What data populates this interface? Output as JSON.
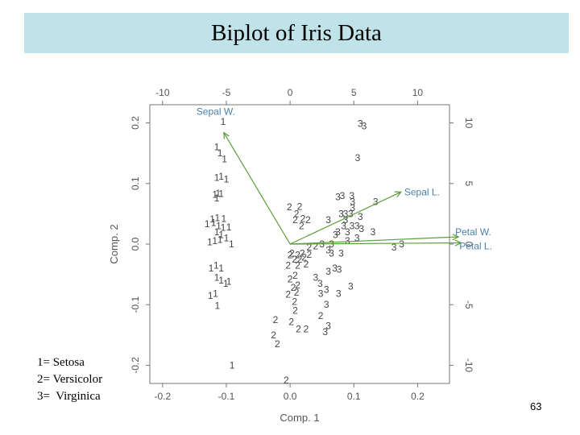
{
  "slide": {
    "title": "Biplot of Iris Data",
    "page_number": "63",
    "legend": [
      "1= Setosa",
      "2= Versicolor",
      "3=  Virginica"
    ]
  },
  "chart_data": {
    "type": "scatter",
    "subtype": "biplot",
    "xlabel": "Comp. 1",
    "ylabel": "Comp. 2",
    "xlim": [
      -0.22,
      0.25
    ],
    "ylim": [
      -0.23,
      0.23
    ],
    "x_ticks": [
      "-0.2",
      "-0.1",
      "0.0",
      "0.1",
      "0.2"
    ],
    "x_tick_values": [
      -0.2,
      -0.1,
      0.0,
      0.1,
      0.2
    ],
    "y_ticks": [
      "-0.2",
      "-0.1",
      "0.0",
      "0.1",
      "0.2"
    ],
    "y_tick_values": [
      -0.2,
      -0.1,
      0.0,
      0.1,
      0.2
    ],
    "top_ticks": [
      "-10",
      "-5",
      "0",
      "5",
      "10"
    ],
    "top_tick_values": [
      -10,
      -5,
      0,
      5,
      10
    ],
    "top_lim": [
      -11,
      12.5
    ],
    "right_ticks": [
      "10",
      "5",
      "0",
      "-5",
      "-10"
    ],
    "right_tick_values": [
      10,
      5,
      0,
      -5,
      -10
    ],
    "right_lim": [
      -11.5,
      11.5
    ],
    "colors": {
      "axis": "#777777",
      "points": "#444444",
      "arrows": "#5c9e3c",
      "labels": "#4a7fa8"
    },
    "loadings": [
      {
        "name": "Sepal W.",
        "x": -5.2,
        "y": 9.2
      },
      {
        "name": "Sepal L.",
        "x": 8.7,
        "y": 4.3
      },
      {
        "name": "Petal W.",
        "x": 13.2,
        "y": 0.6
      },
      {
        "name": "Petal L.",
        "x": 13.4,
        "y": 0.1
      }
    ],
    "series": [
      {
        "name": "Setosa",
        "label": "1",
        "points": [
          [
            -0.105,
            0.202
          ],
          [
            -0.115,
            0.16
          ],
          [
            -0.103,
            0.14
          ],
          [
            -0.11,
            0.15
          ],
          [
            -0.115,
            0.11
          ],
          [
            -0.108,
            0.112
          ],
          [
            -0.1,
            0.107
          ],
          [
            -0.118,
            0.082
          ],
          [
            -0.113,
            0.084
          ],
          [
            -0.108,
            0.083
          ],
          [
            -0.115,
            0.076
          ],
          [
            -0.122,
            0.041
          ],
          [
            -0.114,
            0.043
          ],
          [
            -0.104,
            0.042
          ],
          [
            -0.13,
            0.033
          ],
          [
            -0.12,
            0.035
          ],
          [
            -0.112,
            0.03
          ],
          [
            -0.105,
            0.027
          ],
          [
            -0.096,
            0.028
          ],
          [
            -0.115,
            0.02
          ],
          [
            -0.108,
            0.015
          ],
          [
            -0.1,
            0.01
          ],
          [
            -0.126,
            0.003
          ],
          [
            -0.118,
            0.005
          ],
          [
            -0.11,
            0.007
          ],
          [
            -0.092,
            0.0
          ],
          [
            -0.124,
            -0.04
          ],
          [
            -0.116,
            -0.035
          ],
          [
            -0.108,
            -0.04
          ],
          [
            -0.115,
            -0.055
          ],
          [
            -0.108,
            -0.06
          ],
          [
            -0.101,
            -0.065
          ],
          [
            -0.096,
            -0.062
          ],
          [
            -0.125,
            -0.085
          ],
          [
            -0.117,
            -0.082
          ],
          [
            -0.114,
            -0.102
          ],
          [
            -0.091,
            -0.2
          ]
        ]
      },
      {
        "name": "Versicolor",
        "label": "2",
        "points": [
          [
            -0.001,
            0.061
          ],
          [
            0.01,
            0.05
          ],
          [
            0.008,
            0.04
          ],
          [
            0.02,
            0.042
          ],
          [
            0.018,
            0.03
          ],
          [
            0.015,
            0.062
          ],
          [
            0.028,
            0.04
          ],
          [
            0.003,
            -0.015
          ],
          [
            0.0,
            -0.018
          ],
          [
            0.012,
            -0.018
          ],
          [
            0.019,
            -0.015
          ],
          [
            0.03,
            -0.017
          ],
          [
            0.04,
            -0.003
          ],
          [
            0.007,
            -0.025
          ],
          [
            0.015,
            -0.025
          ],
          [
            0.022,
            -0.022
          ],
          [
            0.03,
            -0.005
          ],
          [
            -0.003,
            -0.035
          ],
          [
            0.012,
            -0.035
          ],
          [
            0.025,
            -0.033
          ],
          [
            0.008,
            -0.052
          ],
          [
            0.0,
            -0.058
          ],
          [
            0.012,
            -0.068
          ],
          [
            0.005,
            -0.072
          ],
          [
            -0.003,
            -0.083
          ],
          [
            0.01,
            -0.08
          ],
          [
            0.007,
            -0.095
          ],
          [
            0.008,
            -0.11
          ],
          [
            -0.023,
            -0.125
          ],
          [
            0.002,
            -0.128
          ],
          [
            0.013,
            -0.14
          ],
          [
            0.025,
            -0.14
          ],
          [
            0.048,
            -0.118
          ],
          [
            -0.026,
            -0.15
          ],
          [
            -0.02,
            -0.165
          ],
          [
            -0.006,
            -0.225
          ]
        ]
      },
      {
        "name": "Virginica",
        "label": "3",
        "points": [
          [
            0.11,
            0.199
          ],
          [
            0.116,
            0.195
          ],
          [
            0.106,
            0.142
          ],
          [
            0.075,
            0.078
          ],
          [
            0.082,
            0.08
          ],
          [
            0.097,
            0.08
          ],
          [
            0.098,
            0.07
          ],
          [
            0.134,
            0.07
          ],
          [
            0.098,
            0.06
          ],
          [
            0.095,
            0.05
          ],
          [
            0.087,
            0.05
          ],
          [
            0.08,
            0.05
          ],
          [
            0.06,
            0.04
          ],
          [
            0.11,
            0.045
          ],
          [
            0.087,
            0.04
          ],
          [
            0.084,
            0.03
          ],
          [
            0.097,
            0.03
          ],
          [
            0.105,
            0.03
          ],
          [
            0.112,
            0.025
          ],
          [
            0.13,
            0.02
          ],
          [
            0.075,
            0.02
          ],
          [
            0.09,
            0.02
          ],
          [
            0.071,
            0.015
          ],
          [
            0.105,
            0.01
          ],
          [
            0.09,
            0.005
          ],
          [
            0.05,
            0.0
          ],
          [
            0.065,
            0.0
          ],
          [
            0.163,
            -0.005
          ],
          [
            0.175,
            0.0
          ],
          [
            0.06,
            -0.01
          ],
          [
            0.065,
            -0.015
          ],
          [
            0.08,
            -0.015
          ],
          [
            0.07,
            -0.04
          ],
          [
            0.077,
            -0.042
          ],
          [
            0.06,
            -0.045
          ],
          [
            0.04,
            -0.055
          ],
          [
            0.047,
            -0.065
          ],
          [
            0.057,
            -0.075
          ],
          [
            0.048,
            -0.082
          ],
          [
            0.076,
            -0.082
          ],
          [
            0.095,
            -0.07
          ],
          [
            0.057,
            -0.1
          ],
          [
            0.06,
            -0.135
          ],
          [
            0.055,
            -0.145
          ]
        ]
      }
    ]
  }
}
